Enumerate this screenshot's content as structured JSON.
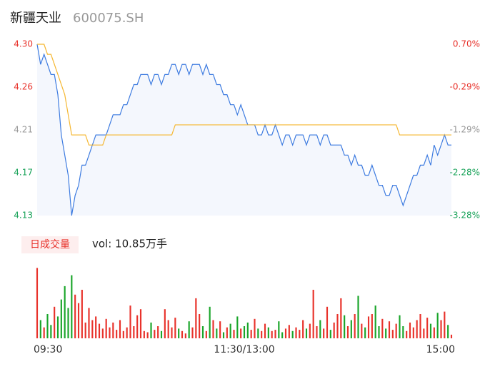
{
  "chart_data": {
    "type": "intraday",
    "title": "新疆天业",
    "subtitle": "600075.SH",
    "xlim": [
      0,
      120
    ],
    "xticks": [
      {
        "value": 0,
        "label": "09:30"
      },
      {
        "value": 60,
        "label": "11:30/13:00"
      },
      {
        "value": 120,
        "label": "15:00"
      }
    ],
    "ylim": [
      4.13,
      4.3
    ],
    "yticks": [
      {
        "value": 4.13,
        "label": "4.13"
      },
      {
        "value": 4.1725,
        "label": "4.17"
      },
      {
        "value": 4.215,
        "label": "4.21"
      },
      {
        "value": 4.2575,
        "label": "4.26"
      },
      {
        "value": 4.3,
        "label": "4.30"
      }
    ],
    "y2lim": [
      -3.28,
      0.7
    ],
    "y2ticks": [
      {
        "value": -3.28,
        "label": "-3.28%"
      },
      {
        "value": -2.284,
        "label": "-2.28%"
      },
      {
        "value": -1.29,
        "label": "-1.29%"
      },
      {
        "value": -0.294,
        "label": "-0.29%"
      },
      {
        "value": 0.7,
        "label": "0.70%"
      }
    ],
    "tick_colors": [
      "#1aa35a",
      "#1aa35a",
      "#999999",
      "#e8322b",
      "#e8322b"
    ],
    "series": [
      {
        "color": "#3d7be0",
        "values": [
          4.3,
          4.28,
          4.29,
          4.28,
          4.27,
          4.27,
          4.25,
          4.21,
          4.19,
          4.17,
          4.13,
          4.15,
          4.16,
          4.18,
          4.18,
          4.19,
          4.2,
          4.21,
          4.21,
          4.21,
          4.21,
          4.22,
          4.23,
          4.23,
          4.23,
          4.24,
          4.24,
          4.25,
          4.26,
          4.26,
          4.27,
          4.27,
          4.27,
          4.26,
          4.27,
          4.27,
          4.26,
          4.27,
          4.27,
          4.28,
          4.28,
          4.27,
          4.28,
          4.28,
          4.27,
          4.28,
          4.28,
          4.28,
          4.27,
          4.28,
          4.27,
          4.27,
          4.26,
          4.26,
          4.25,
          4.25,
          4.24,
          4.24,
          4.23,
          4.24,
          4.23,
          4.22,
          4.22,
          4.22,
          4.21,
          4.21,
          4.22,
          4.21,
          4.21,
          4.22,
          4.21,
          4.2,
          4.21,
          4.21,
          4.2,
          4.21,
          4.21,
          4.21,
          4.2,
          4.21,
          4.21,
          4.21,
          4.2,
          4.21,
          4.21,
          4.2,
          4.2,
          4.2,
          4.2,
          4.19,
          4.19,
          4.18,
          4.19,
          4.18,
          4.18,
          4.17,
          4.17,
          4.18,
          4.17,
          4.16,
          4.16,
          4.15,
          4.15,
          4.16,
          4.16,
          4.15,
          4.14,
          4.15,
          4.16,
          4.17,
          4.17,
          4.18,
          4.18,
          4.19,
          4.18,
          4.2,
          4.19,
          4.2,
          4.21,
          4.2,
          4.2
        ]
      },
      {
        "color": "#f5b731",
        "values": [
          4.3,
          4.3,
          4.3,
          4.29,
          4.29,
          4.28,
          4.27,
          4.26,
          4.25,
          4.23,
          4.21,
          4.21,
          4.21,
          4.21,
          4.21,
          4.2,
          4.2,
          4.2,
          4.2,
          4.2,
          4.21,
          4.21,
          4.21,
          4.21,
          4.21,
          4.21,
          4.21,
          4.21,
          4.21,
          4.21,
          4.21,
          4.21,
          4.21,
          4.21,
          4.21,
          4.21,
          4.21,
          4.21,
          4.21,
          4.21,
          4.22,
          4.22,
          4.22,
          4.22,
          4.22,
          4.22,
          4.22,
          4.22,
          4.22,
          4.22,
          4.22,
          4.22,
          4.22,
          4.22,
          4.22,
          4.22,
          4.22,
          4.22,
          4.22,
          4.22,
          4.22,
          4.22,
          4.22,
          4.22,
          4.22,
          4.22,
          4.22,
          4.22,
          4.22,
          4.22,
          4.22,
          4.22,
          4.22,
          4.22,
          4.22,
          4.22,
          4.22,
          4.22,
          4.22,
          4.22,
          4.22,
          4.22,
          4.22,
          4.22,
          4.22,
          4.22,
          4.22,
          4.22,
          4.22,
          4.22,
          4.22,
          4.22,
          4.22,
          4.22,
          4.22,
          4.22,
          4.22,
          4.22,
          4.22,
          4.22,
          4.22,
          4.22,
          4.22,
          4.22,
          4.22,
          4.21,
          4.21,
          4.21,
          4.21,
          4.21,
          4.21,
          4.21,
          4.21,
          4.21,
          4.21,
          4.21,
          4.21,
          4.21,
          4.21,
          4.21,
          4.21
        ]
      }
    ],
    "volume": {
      "legend": "日成交量",
      "summary": "vol: 10.85万手",
      "up_color": "#e8322b",
      "down_color": "#1aa52a",
      "ylim": [
        0,
        6000
      ],
      "values": [
        5800,
        1500,
        900,
        2000,
        1100,
        2600,
        1800,
        3200,
        4300,
        2500,
        5200,
        3600,
        2900,
        4000,
        1300,
        2500,
        1500,
        1800,
        1200,
        800,
        1600,
        900,
        1300,
        700,
        1500,
        600,
        900,
        2700,
        1000,
        1900,
        2400,
        600,
        500,
        1300,
        700,
        1000,
        600,
        2400,
        1500,
        900,
        1700,
        800,
        600,
        400,
        1400,
        900,
        3300,
        2000,
        1000,
        600,
        2600,
        1500,
        800,
        1400,
        500,
        900,
        1200,
        700,
        1800,
        800,
        1000,
        1300,
        700,
        1600,
        800,
        600,
        1200,
        900,
        600,
        700,
        1400,
        500,
        800,
        1100,
        600,
        900,
        700,
        1500,
        800,
        1200,
        4000,
        1000,
        1500,
        800,
        2600,
        700,
        1300,
        2000,
        3300,
        1900,
        1000,
        1500,
        2000,
        3500,
        1200,
        900,
        1800,
        2000,
        2700,
        1000,
        1600,
        800,
        1400,
        700,
        1200,
        1900,
        1000,
        600,
        1300,
        900,
        1500,
        2000,
        800,
        1700,
        1200,
        900,
        2100,
        1500,
        2200,
        1100,
        300
      ]
    }
  }
}
